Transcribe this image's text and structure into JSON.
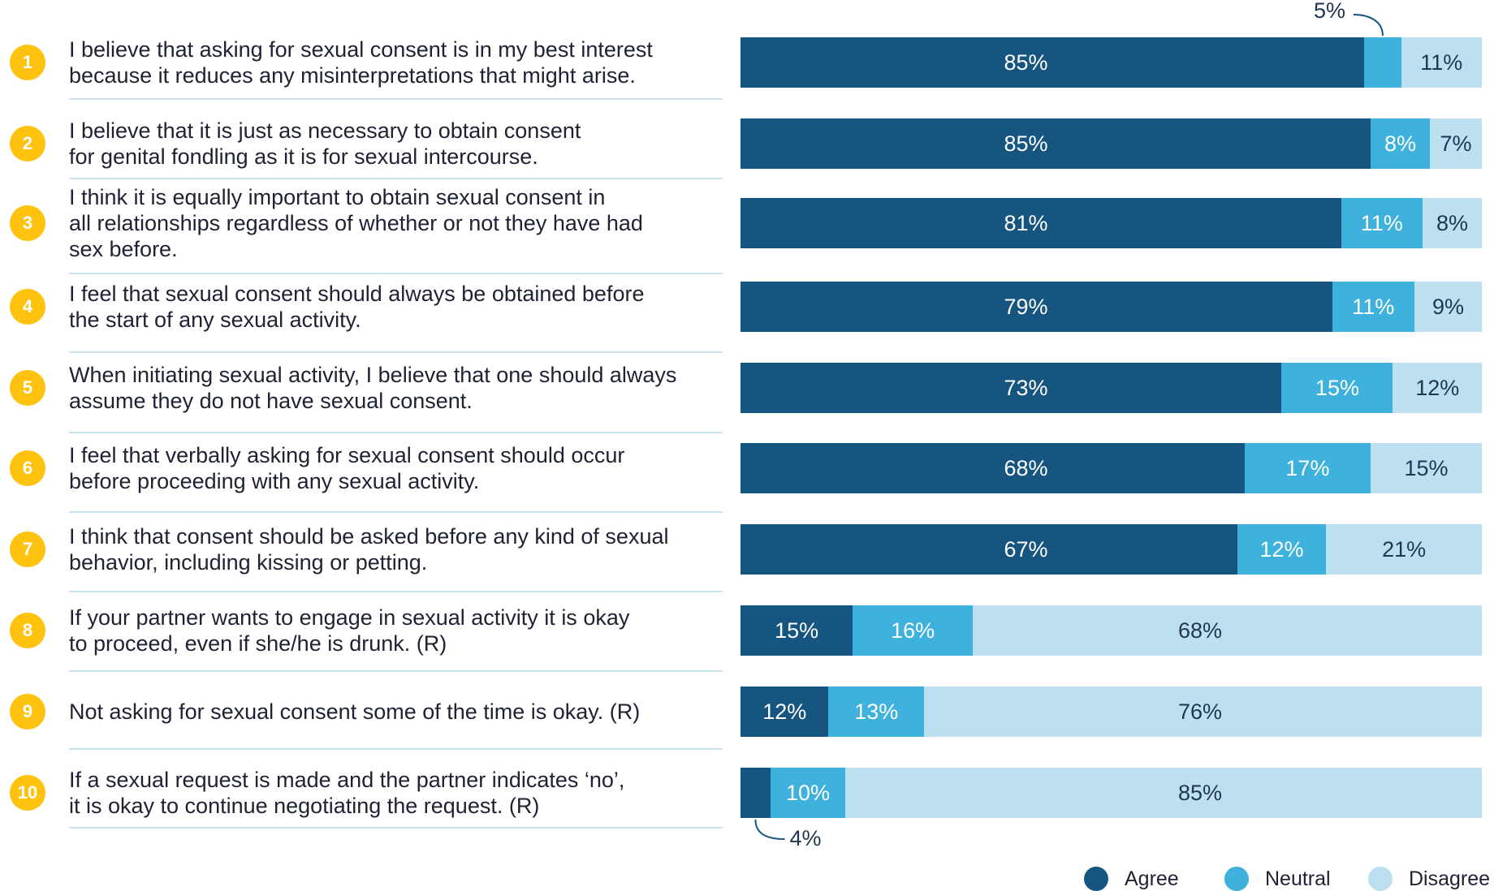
{
  "colors": {
    "agree": "#155580",
    "neutral": "#3eb1dc",
    "disagree": "#bde0f1",
    "badge": "#ffc20e",
    "separator": "#c9e3ef"
  },
  "chart_data": {
    "type": "bar",
    "orientation": "horizontal",
    "stacked": true,
    "percent": true,
    "categories": [
      "I believe that asking for sexual consent is in my best interest\nbecause it reduces any misinterpretations that might arise.",
      "I believe that it is just as necessary to obtain consent\nfor genital fondling as it is for sexual intercourse.",
      "I think it is equally important to obtain sexual consent in\nall relationships regardless of whether or not they have had\nsex before.",
      "I feel that sexual consent should always be obtained before\nthe start of any sexual activity.",
      "When initiating sexual activity, I believe that one should always\nassume they do not have sexual consent.",
      "I feel that verbally asking for sexual consent should occur\nbefore proceeding with any sexual activity.",
      "I think that consent should be asked before any kind of sexual\nbehavior, including kissing or petting.",
      "If your partner wants to engage in sexual activity it is okay\nto proceed, even if she/he is drunk. (R)",
      "Not asking for sexual consent some of the time is okay. (R)",
      "If a sexual request is made and the partner indicates ‘no’,\nit is okay to continue negotiating the request. (R)"
    ],
    "item_numbers": [
      "1",
      "2",
      "3",
      "4",
      "5",
      "6",
      "7",
      "8",
      "9",
      "10"
    ],
    "series": [
      {
        "name": "Agree",
        "values": [
          85,
          85,
          81,
          79,
          73,
          68,
          67,
          15,
          12,
          4
        ]
      },
      {
        "name": "Neutral",
        "values": [
          5,
          8,
          11,
          11,
          15,
          17,
          12,
          16,
          13,
          10
        ]
      },
      {
        "name": "Disagree",
        "values": [
          11,
          7,
          8,
          9,
          12,
          15,
          21,
          68,
          76,
          85
        ]
      }
    ],
    "value_labels": [
      [
        "85%",
        "5%",
        "11%"
      ],
      [
        "85%",
        "8%",
        "7%"
      ],
      [
        "81%",
        "11%",
        "8%"
      ],
      [
        "79%",
        "11%",
        "9%"
      ],
      [
        "73%",
        "15%",
        "12%"
      ],
      [
        "68%",
        "17%",
        "15%"
      ],
      [
        "67%",
        "12%",
        "21%"
      ],
      [
        "15%",
        "16%",
        "68%"
      ],
      [
        "12%",
        "13%",
        "76%"
      ],
      [
        "4%",
        "10%",
        "85%"
      ]
    ],
    "legend": {
      "position": "bottom-right",
      "entries": [
        "Agree",
        "Neutral",
        "Disagree"
      ]
    }
  }
}
